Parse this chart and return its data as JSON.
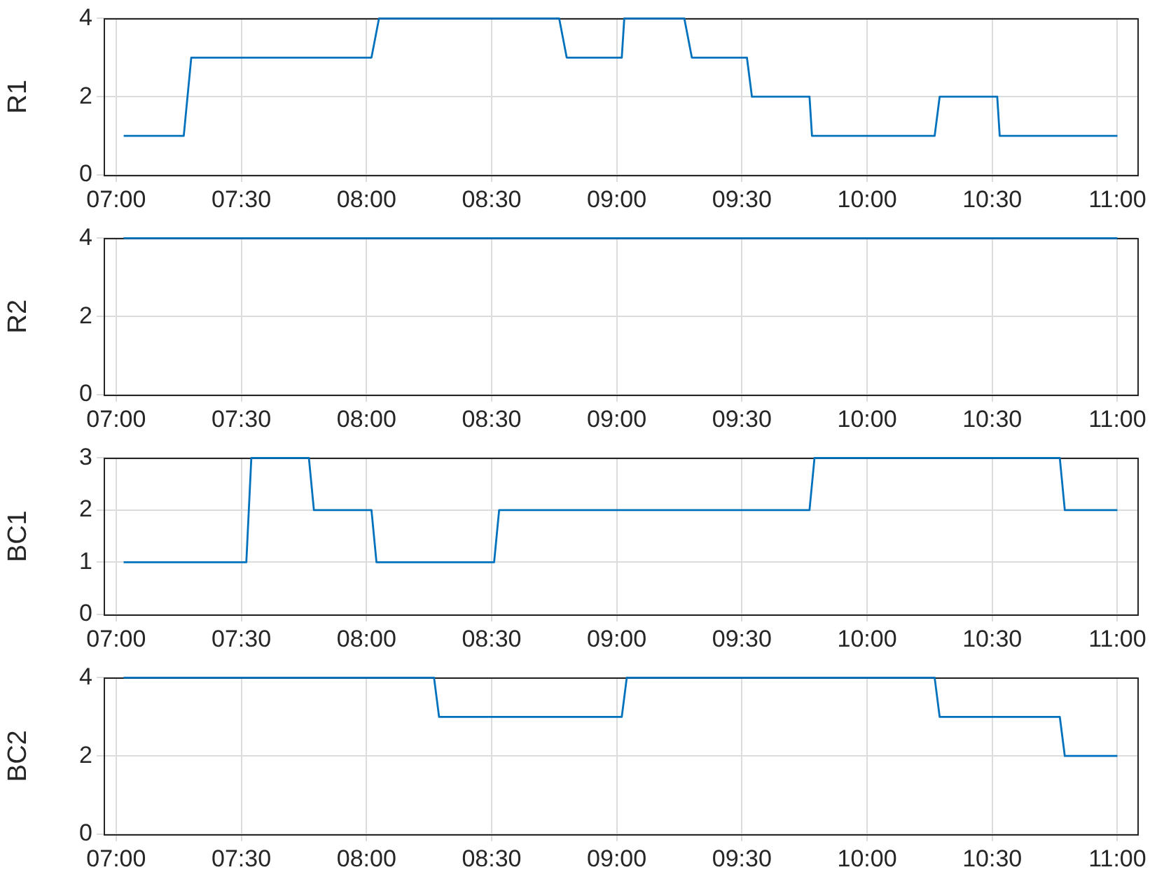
{
  "chart_data": [
    {
      "type": "line",
      "ylabel": "R1",
      "xlim": [
        6.95,
        11.08
      ],
      "ylim": [
        0,
        4
      ],
      "yticks": [
        0,
        2,
        4
      ],
      "grid": true,
      "marker": "none",
      "xticks": [
        {
          "value": 7,
          "label": "07:00"
        },
        {
          "value": 7.5,
          "label": "07:30"
        },
        {
          "value": 8,
          "label": "08:00"
        },
        {
          "value": 8.5,
          "label": "08:30"
        },
        {
          "value": 9,
          "label": "09:00"
        },
        {
          "value": 9.5,
          "label": "09:30"
        },
        {
          "value": 10,
          "label": "10:00"
        },
        {
          "value": 10.5,
          "label": "10:30"
        },
        {
          "value": 11,
          "label": "11:00"
        }
      ],
      "series": [
        {
          "color": "#0072bd",
          "x": [
            7.03,
            7.27,
            7.3,
            8.02,
            8.05,
            8.77,
            8.8,
            9.02,
            9.03,
            9.27,
            9.3,
            9.52,
            9.54,
            9.77,
            9.78,
            10.27,
            10.29,
            10.52,
            10.53,
            11
          ],
          "values": [
            1,
            1,
            3,
            3,
            4,
            4,
            3,
            3,
            4,
            4,
            3,
            3,
            2,
            2,
            1,
            1,
            2,
            2,
            1,
            1
          ]
        }
      ]
    },
    {
      "type": "line",
      "ylabel": "R2",
      "xlim": [
        6.95,
        11.08
      ],
      "ylim": [
        0,
        4
      ],
      "yticks": [
        0,
        2,
        4
      ],
      "grid": true,
      "marker": "none",
      "xticks": [
        {
          "value": 7,
          "label": "07:00"
        },
        {
          "value": 7.5,
          "label": "07:30"
        },
        {
          "value": 8,
          "label": "08:00"
        },
        {
          "value": 8.5,
          "label": "08:30"
        },
        {
          "value": 9,
          "label": "09:00"
        },
        {
          "value": 9.5,
          "label": "09:30"
        },
        {
          "value": 10,
          "label": "10:00"
        },
        {
          "value": 10.5,
          "label": "10:30"
        },
        {
          "value": 11,
          "label": "11:00"
        }
      ],
      "series": [
        {
          "color": "#0072bd",
          "x": [
            7.03,
            11
          ],
          "values": [
            4,
            4
          ]
        }
      ]
    },
    {
      "type": "line",
      "ylabel": "BC1",
      "xlim": [
        6.95,
        11.08
      ],
      "ylim": [
        0,
        3
      ],
      "yticks": [
        0,
        1,
        2,
        3
      ],
      "grid": true,
      "marker": "none",
      "xticks": [
        {
          "value": 7,
          "label": "07:00"
        },
        {
          "value": 7.5,
          "label": "07:30"
        },
        {
          "value": 8,
          "label": "08:00"
        },
        {
          "value": 8.5,
          "label": "08:30"
        },
        {
          "value": 9,
          "label": "09:00"
        },
        {
          "value": 9.5,
          "label": "09:30"
        },
        {
          "value": 10,
          "label": "10:00"
        },
        {
          "value": 10.5,
          "label": "10:30"
        },
        {
          "value": 11,
          "label": "11:00"
        }
      ],
      "series": [
        {
          "color": "#0072bd",
          "x": [
            7.03,
            7.52,
            7.54,
            7.77,
            7.79,
            8.02,
            8.04,
            8.51,
            8.53,
            9.77,
            9.79,
            10.77,
            10.79,
            11
          ],
          "values": [
            1,
            1,
            3,
            3,
            2,
            2,
            1,
            1,
            2,
            2,
            3,
            3,
            2,
            2
          ]
        }
      ]
    },
    {
      "type": "line",
      "ylabel": "BC2",
      "xlim": [
        6.95,
        11.08
      ],
      "ylim": [
        0,
        4
      ],
      "yticks": [
        0,
        2,
        4
      ],
      "grid": true,
      "marker": "none",
      "xticks": [
        {
          "value": 7,
          "label": "07:00"
        },
        {
          "value": 7.5,
          "label": "07:30"
        },
        {
          "value": 8,
          "label": "08:00"
        },
        {
          "value": 8.5,
          "label": "08:30"
        },
        {
          "value": 9,
          "label": "09:00"
        },
        {
          "value": 9.5,
          "label": "09:30"
        },
        {
          "value": 10,
          "label": "10:00"
        },
        {
          "value": 10.5,
          "label": "10:30"
        },
        {
          "value": 11,
          "label": "11:00"
        }
      ],
      "series": [
        {
          "color": "#0072bd",
          "x": [
            7.03,
            8.27,
            8.29,
            9.02,
            9.04,
            10.27,
            10.29,
            10.77,
            10.79,
            11
          ],
          "values": [
            4,
            4,
            3,
            3,
            4,
            4,
            3,
            3,
            2,
            2
          ]
        }
      ]
    }
  ]
}
